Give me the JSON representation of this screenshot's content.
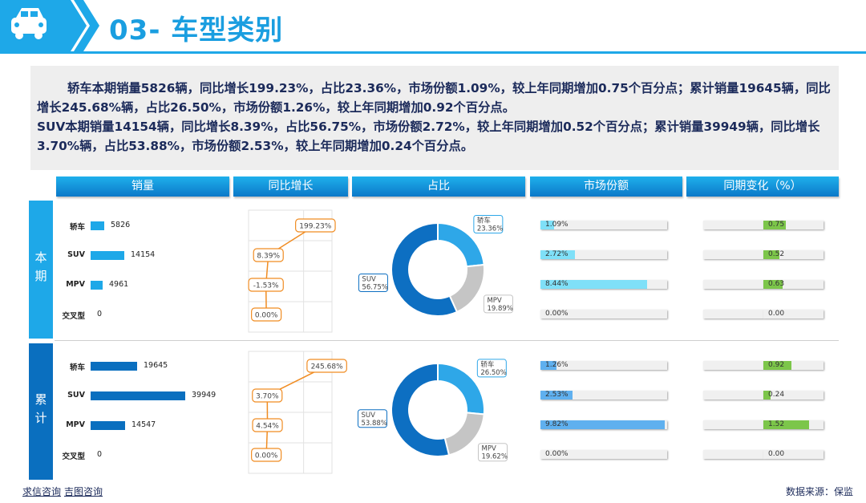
{
  "header": {
    "title": "03- 车型类别"
  },
  "summary": {
    "line1": "轿车本期销量5826辆，同比增长199.23%，占比23.36%，市场份额1.09%，较上年同期增加0.75个百分点；累计销量19645辆，同比增长245.68%辆，占比26.50%，市场份额1.26%，较上年同期增加0.92个百分点。",
    "line2": "SUV本期销量14154辆，同比增长8.39%，占比56.75%，市场份额2.72%，较上年同期增加0.52个百分点；累计销量39949辆，同比增长3.70%辆，占比53.88%，市场份额2.53%，较上年同期增加0.24个百分点。"
  },
  "columns": [
    "销量",
    "同比增长",
    "占比",
    "市场份额",
    "同期变化（%）"
  ],
  "rows": [
    "本期",
    "累计"
  ],
  "footer": {
    "link1": "求信咨询",
    "link2": "吉图咨询",
    "source": "数据来源：保监"
  },
  "colors": {
    "current_bar": "#1ea8e8",
    "cumulative_bar": "#0a6fbf",
    "growth_line": "#f08c22",
    "share_current": "#7fe0f8",
    "share_cumulative": "#5fb0ef",
    "change": "#7cc64a",
    "donut_light": "#2ea7e8",
    "donut_dark": "#0d6fc2",
    "donut_grey": "#c5c5c5"
  },
  "chart_data": [
    {
      "type": "bar",
      "section": "本期",
      "metric": "销量",
      "categories": [
        "轿车",
        "SUV",
        "MPV",
        "交叉型"
      ],
      "values": [
        5826,
        14154,
        4961,
        0
      ]
    },
    {
      "type": "line",
      "section": "本期",
      "metric": "同比增长",
      "categories": [
        "轿车",
        "SUV",
        "MPV",
        "交叉型"
      ],
      "values": [
        199.23,
        8.39,
        -1.53,
        0.0
      ],
      "labels": [
        "199.23%",
        "8.39%",
        "-1.53%",
        "0.00%"
      ]
    },
    {
      "type": "pie",
      "section": "本期",
      "metric": "占比",
      "slices": [
        {
          "name": "轿车",
          "value": 23.36,
          "label": "23.36%"
        },
        {
          "name": "MPV",
          "value": 19.89,
          "label": "19.89%"
        },
        {
          "name": "SUV",
          "value": 56.75,
          "label": "56.75%"
        }
      ]
    },
    {
      "type": "bar",
      "section": "本期",
      "metric": "市场份额",
      "categories": [
        "轿车",
        "SUV",
        "MPV",
        "交叉型"
      ],
      "values": [
        1.09,
        2.72,
        8.44,
        0.0
      ],
      "labels": [
        "1.09%",
        "2.72%",
        "8.44%",
        "0.00%"
      ]
    },
    {
      "type": "bar",
      "section": "本期",
      "metric": "同期变化（%）",
      "categories": [
        "轿车",
        "SUV",
        "MPV",
        "交叉型"
      ],
      "values": [
        0.75,
        0.52,
        0.63,
        0.0
      ],
      "labels": [
        "0.75",
        "0.52",
        "0.63",
        "0.00"
      ]
    },
    {
      "type": "bar",
      "section": "累计",
      "metric": "销量",
      "categories": [
        "轿车",
        "SUV",
        "MPV",
        "交叉型"
      ],
      "values": [
        19645,
        39949,
        14547,
        0
      ]
    },
    {
      "type": "line",
      "section": "累计",
      "metric": "同比增长",
      "categories": [
        "轿车",
        "SUV",
        "MPV",
        "交叉型"
      ],
      "values": [
        245.68,
        3.7,
        4.54,
        0.0
      ],
      "labels": [
        "245.68%",
        "3.70%",
        "4.54%",
        "0.00%"
      ]
    },
    {
      "type": "pie",
      "section": "累计",
      "metric": "占比",
      "slices": [
        {
          "name": "轿车",
          "value": 26.5,
          "label": "26.50%"
        },
        {
          "name": "MPV",
          "value": 19.62,
          "label": "19.62%"
        },
        {
          "name": "SUV",
          "value": 53.88,
          "label": "53.88%"
        }
      ]
    },
    {
      "type": "bar",
      "section": "累计",
      "metric": "市场份额",
      "categories": [
        "轿车",
        "SUV",
        "MPV",
        "交叉型"
      ],
      "values": [
        1.26,
        2.53,
        9.82,
        0.0
      ],
      "labels": [
        "1.26%",
        "2.53%",
        "9.82%",
        "0.00%"
      ]
    },
    {
      "type": "bar",
      "section": "累计",
      "metric": "同期变化（%）",
      "categories": [
        "轿车",
        "SUV",
        "MPV",
        "交叉型"
      ],
      "values": [
        0.92,
        0.24,
        1.52,
        0.0
      ],
      "labels": [
        "0.92",
        "0.24",
        "1.52",
        "0.00"
      ]
    }
  ]
}
